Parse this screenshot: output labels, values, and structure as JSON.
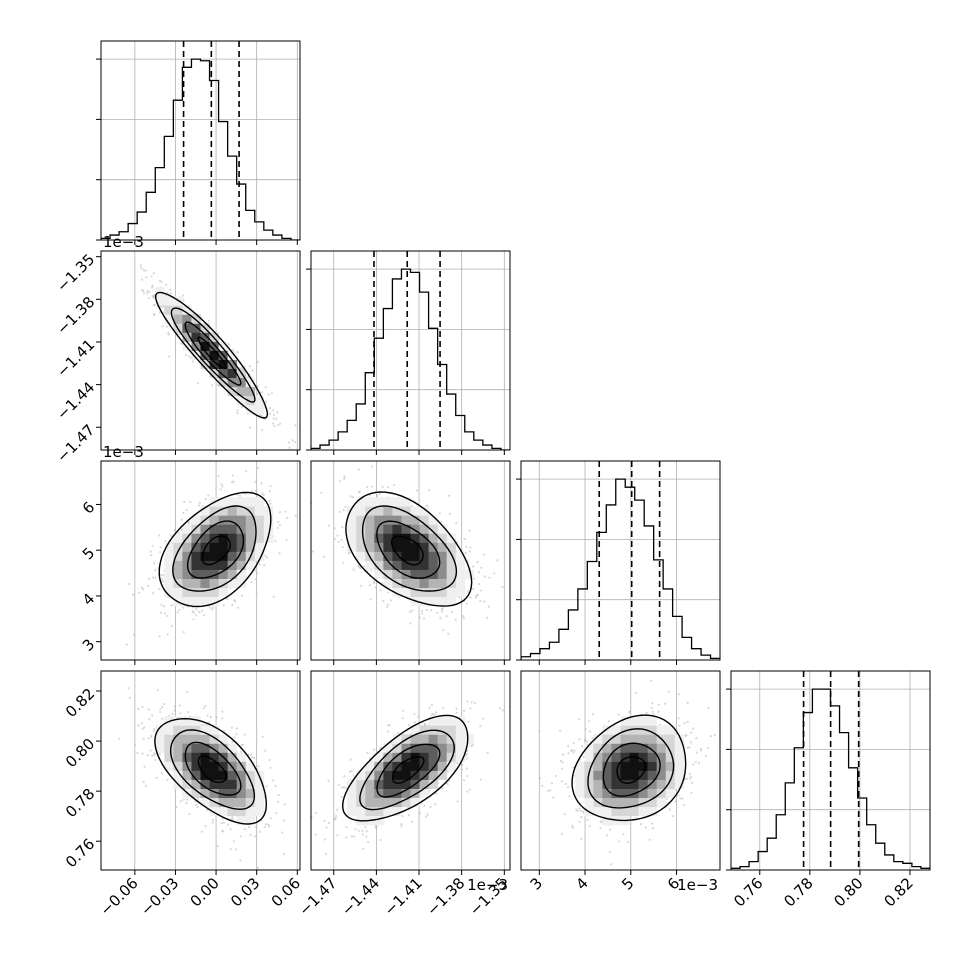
{
  "chart_data": {
    "type": "corner",
    "style": {
      "frame_color": "#000000",
      "grid_color": "#b0b0b0",
      "line_color": "#000000",
      "scatter_color": "#b8b8b8",
      "density_colors": [
        "#ffffff",
        "#f0f0f0",
        "#d6d6d6",
        "#b4b4b4",
        "#8c8c8c",
        "#5e5e5e",
        "#333333",
        "#111111"
      ]
    },
    "parameters": [
      {
        "ticks": [
          -0.06,
          -0.03,
          0.0,
          0.03,
          0.06
        ],
        "tick_labels": [
          "−0.06",
          "−0.03",
          "0.00",
          "0.03",
          "0.06"
        ],
        "range": [
          -0.085,
          0.062
        ],
        "offset_label": ""
      },
      {
        "ticks": [
          -1.47,
          -1.44,
          -1.41,
          -1.38,
          -1.35
        ],
        "tick_labels": [
          "−1.47",
          "−1.44",
          "−1.41",
          "−1.38",
          "−1.35"
        ],
        "range": [
          -1.486,
          -1.346
        ],
        "offset_label": "1e−3"
      },
      {
        "ticks": [
          3,
          4,
          5,
          6
        ],
        "tick_labels": [
          "3",
          "4",
          "5",
          "6"
        ],
        "range": [
          2.6,
          6.95
        ],
        "offset_label": "1e−3"
      },
      {
        "ticks": [
          0.76,
          0.78,
          0.8,
          0.82
        ],
        "tick_labels": [
          "0.76",
          "0.78",
          "0.80",
          "0.82"
        ],
        "range": [
          0.7485,
          0.828
        ],
        "offset_label": ""
      }
    ],
    "marginals": [
      {
        "quantiles": [
          -0.024,
          -0.0035,
          0.017
        ],
        "bin_edges": [
          -0.085,
          0.062
        ],
        "counts": [
          1,
          3,
          5,
          10,
          17,
          29,
          44,
          63,
          85,
          105,
          110,
          109,
          97,
          72,
          51,
          34,
          18,
          11,
          6,
          3,
          1,
          0
        ]
      },
      {
        "quantiles": [
          -1.4417,
          -1.4183,
          -1.3952
        ],
        "bin_edges": [
          -1.486,
          -1.346
        ],
        "counts": [
          1,
          3,
          6,
          11,
          18,
          28,
          47,
          68,
          86,
          104,
          110,
          108,
          96,
          74,
          52,
          34,
          21,
          11,
          6,
          3,
          1,
          0
        ]
      },
      {
        "quantiles": [
          4.31,
          5.02,
          5.63
        ],
        "bin_edges": [
          2.6,
          6.95
        ],
        "counts": [
          2,
          4,
          7,
          11,
          19,
          31,
          44,
          61,
          79,
          96,
          112,
          107,
          99,
          83,
          62,
          44,
          27,
          14,
          7,
          3,
          1
        ]
      },
      {
        "quantiles": [
          0.7775,
          0.7883,
          0.7995
        ],
        "bin_edges": [
          0.7485,
          0.828
        ],
        "counts": [
          1,
          2,
          5,
          11,
          19,
          33,
          52,
          73,
          94,
          108,
          108,
          98,
          82,
          61,
          43,
          27,
          16,
          9,
          5,
          4,
          2,
          1
        ]
      }
    ],
    "pairs": [
      {
        "row": 1,
        "col": 0,
        "mean": [
          -0.003,
          -1.418
        ],
        "std": [
          0.0205,
          0.022
        ],
        "rho": -0.93
      },
      {
        "row": 2,
        "col": 0,
        "mean": [
          0.0,
          5.0
        ],
        "std": [
          0.0205,
          0.62
        ],
        "rho": 0.45
      },
      {
        "row": 2,
        "col": 1,
        "mean": [
          -1.418,
          5.0
        ],
        "std": [
          0.022,
          0.62
        ],
        "rho": -0.48
      },
      {
        "row": 3,
        "col": 0,
        "mean": [
          -0.003,
          0.7886
        ],
        "std": [
          0.0205,
          0.0105
        ],
        "rho": -0.58
      },
      {
        "row": 3,
        "col": 1,
        "mean": [
          -1.418,
          0.7886
        ],
        "std": [
          0.022,
          0.0105
        ],
        "rho": 0.65
      },
      {
        "row": 3,
        "col": 2,
        "mean": [
          5.0,
          0.7886
        ],
        "std": [
          0.62,
          0.0105
        ],
        "rho": 0.2
      }
    ],
    "grid": true,
    "contour_levels_sigma": [
      0.5,
      1.0,
      1.5,
      2.0
    ]
  }
}
